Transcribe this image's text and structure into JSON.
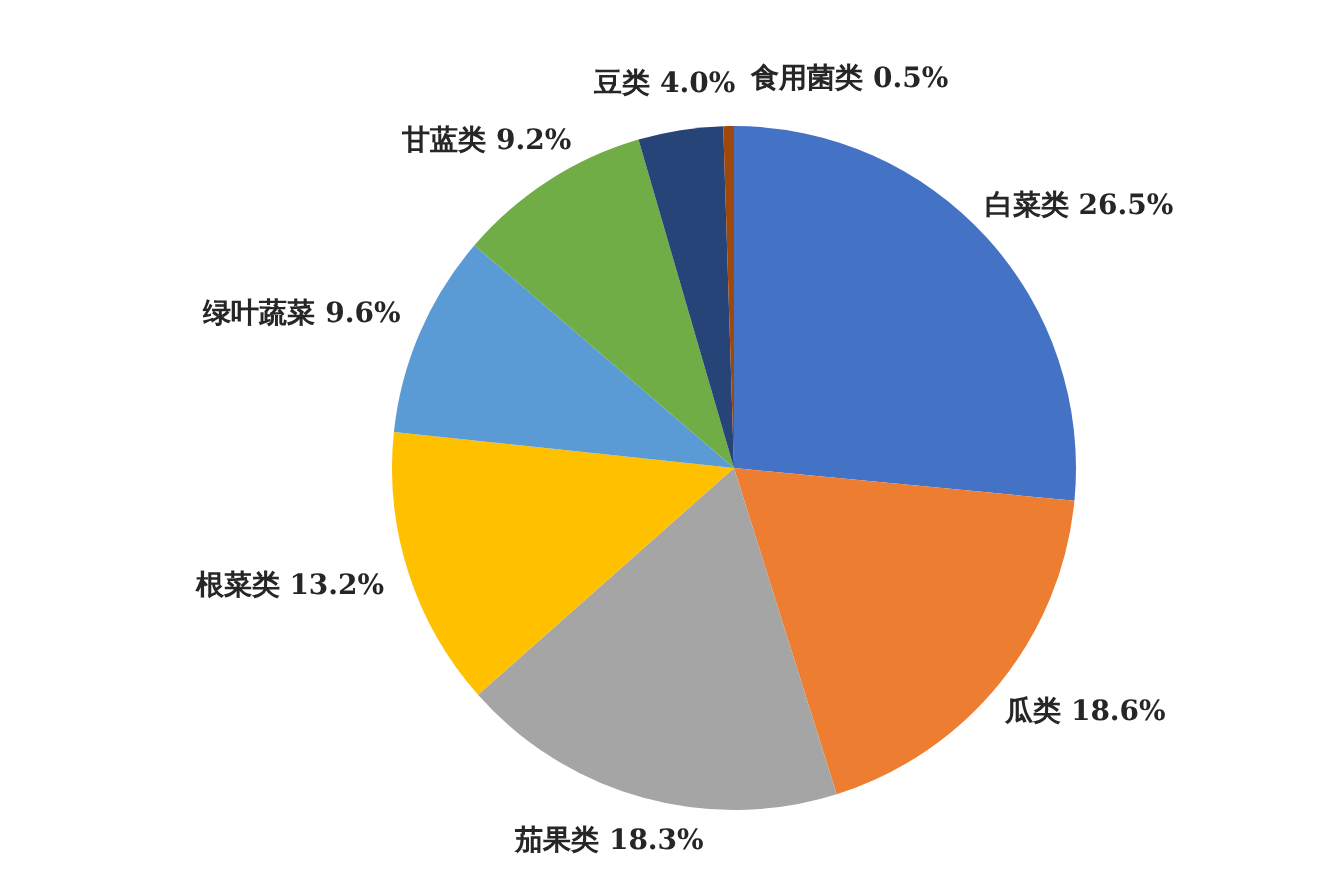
{
  "chart_data": {
    "type": "pie",
    "categories": [
      "白菜类",
      "瓜类",
      "茄果类",
      "根菜类",
      "绿叶蔬菜",
      "甘蓝类",
      "豆类",
      "食用菌类"
    ],
    "values": [
      26.5,
      18.6,
      18.3,
      13.2,
      9.6,
      9.2,
      4.0,
      0.5
    ],
    "colors": [
      "#4472c4",
      "#ed7d31",
      "#a5a5a5",
      "#ffc000",
      "#5b9bd5",
      "#70ad47",
      "#264478",
      "#9e480e"
    ],
    "value_labels": [
      "26.5%",
      "18.6%",
      "18.3%",
      "13.2%",
      "9.6%",
      "9.2%",
      "4.0%",
      "0.5%"
    ]
  }
}
